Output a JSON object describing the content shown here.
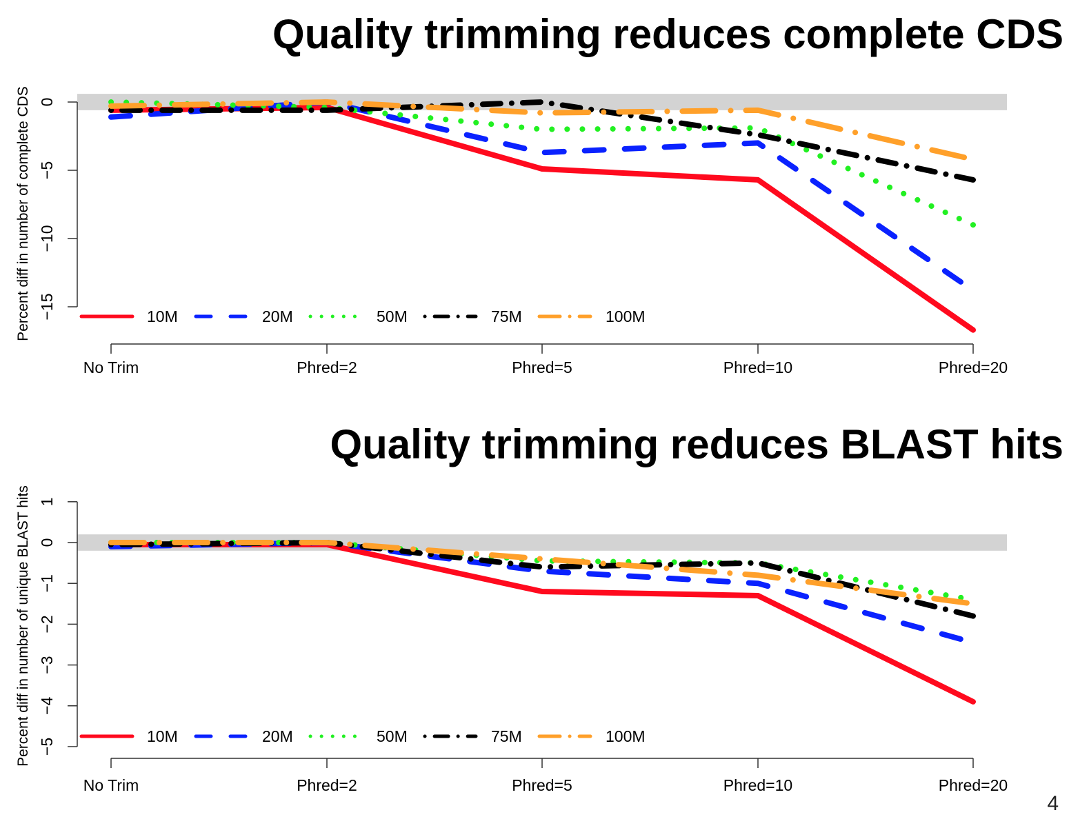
{
  "page_number": "4",
  "chart_data": [
    {
      "type": "line",
      "title": "Quality trimming reduces complete CDS",
      "xlabel": "",
      "ylabel": "Percent diff in number of complete CDS",
      "categories": [
        "No Trim",
        "Phred=2",
        "Phred=5",
        "Phred=10",
        "Phred=20"
      ],
      "yticks": [
        0,
        -5,
        -10,
        -15
      ],
      "ytick_labels": [
        "0",
        "−5",
        "−10",
        "−15"
      ],
      "ylim": [
        -17,
        0.6
      ],
      "shaded_band": [
        -0.6,
        0.6
      ],
      "grid": false,
      "legend_position": "bottom-left",
      "legend_layout": "horizontal",
      "series": [
        {
          "name": "10M",
          "style": "solid",
          "color": "#ff0a1e",
          "values": [
            -0.6,
            -0.4,
            -4.9,
            -5.7,
            -16.7
          ]
        },
        {
          "name": "20M",
          "style": "dashed",
          "color": "#0a22ff",
          "values": [
            -1.1,
            0.0,
            -3.7,
            -3.0,
            -13.8
          ]
        },
        {
          "name": "50M",
          "style": "dotted",
          "color": "#22f022",
          "values": [
            0.0,
            -0.4,
            -2.0,
            -1.9,
            -9.0
          ]
        },
        {
          "name": "75M",
          "style": "dotdash",
          "color": "#000000",
          "values": [
            -0.6,
            -0.6,
            0.0,
            -2.4,
            -5.7
          ]
        },
        {
          "name": "100M",
          "style": "longdash",
          "color": "#ffa02a",
          "values": [
            -0.3,
            0.0,
            -0.8,
            -0.6,
            -4.2
          ]
        }
      ]
    },
    {
      "type": "line",
      "title": "Quality trimming reduces BLAST hits",
      "xlabel": "",
      "ylabel": "Percent diff in number of unique BLAST hits",
      "categories": [
        "No Trim",
        "Phred=2",
        "Phred=5",
        "Phred=10",
        "Phred=20"
      ],
      "yticks": [
        1,
        0,
        -1,
        -2,
        -3,
        -4,
        -5
      ],
      "ytick_labels": [
        "1",
        "0",
        "−1",
        "−2",
        "−3",
        "−4",
        "−5"
      ],
      "ylim": [
        -5,
        1
      ],
      "shaded_band": [
        -0.2,
        0.2
      ],
      "grid": false,
      "legend_position": "bottom-left",
      "legend_layout": "horizontal",
      "series": [
        {
          "name": "10M",
          "style": "solid",
          "color": "#ff0a1e",
          "values": [
            -0.05,
            -0.05,
            -1.2,
            -1.3,
            -3.9
          ]
        },
        {
          "name": "20M",
          "style": "dashed",
          "color": "#0a22ff",
          "values": [
            -0.1,
            0.0,
            -0.7,
            -1.0,
            -2.45
          ]
        },
        {
          "name": "50M",
          "style": "dotted",
          "color": "#22f022",
          "values": [
            0.0,
            0.0,
            -0.45,
            -0.5,
            -1.4
          ]
        },
        {
          "name": "75M",
          "style": "dotdash",
          "color": "#000000",
          "values": [
            -0.05,
            0.0,
            -0.6,
            -0.5,
            -1.8
          ]
        },
        {
          "name": "100M",
          "style": "longdash",
          "color": "#ffa02a",
          "values": [
            0.0,
            0.0,
            -0.4,
            -0.8,
            -1.5
          ]
        }
      ]
    }
  ]
}
